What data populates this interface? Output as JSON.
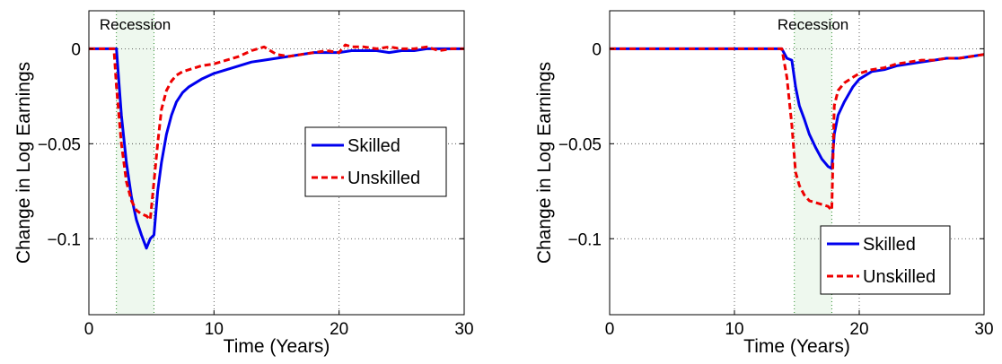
{
  "chart_data": [
    {
      "type": "line",
      "title": "",
      "xlabel": "Time (Years)",
      "ylabel": "Change in Log Earnings",
      "xlim": [
        0,
        30
      ],
      "ylim": [
        -0.14,
        0.02
      ],
      "xticks": [
        0,
        10,
        20,
        30
      ],
      "yticks": [
        0,
        -0.05,
        -0.1
      ],
      "xtick_labels": [
        "0",
        "10",
        "20",
        "30"
      ],
      "ytick_labels": [
        "0",
        "−0.05",
        "−0.1"
      ],
      "grid": true,
      "legend_position": "right",
      "annotation": "Recession",
      "shaded_region": [
        2.2,
        5.2
      ],
      "series": [
        {
          "name": "Skilled",
          "color": "#0000ee",
          "style": "solid",
          "x": [
            0,
            1,
            2,
            2.2,
            2.6,
            3.0,
            3.4,
            3.8,
            4.2,
            4.6,
            4.9,
            5.2,
            5.5,
            5.8,
            6.2,
            6.6,
            7.0,
            7.5,
            8,
            9,
            10,
            11,
            12,
            13,
            14,
            15,
            16,
            17,
            18,
            19,
            20,
            21,
            22,
            23,
            24,
            25,
            26,
            27,
            28,
            29,
            30
          ],
          "y": [
            0,
            0,
            0,
            0,
            -0.035,
            -0.06,
            -0.078,
            -0.09,
            -0.098,
            -0.105,
            -0.1,
            -0.098,
            -0.075,
            -0.06,
            -0.045,
            -0.035,
            -0.028,
            -0.023,
            -0.02,
            -0.016,
            -0.013,
            -0.011,
            -0.009,
            -0.007,
            -0.006,
            -0.005,
            -0.004,
            -0.003,
            -0.002,
            -0.002,
            -0.002,
            -0.001,
            -0.001,
            -0.001,
            -0.002,
            -0.001,
            -0.001,
            0,
            0,
            0,
            0
          ]
        },
        {
          "name": "Unskilled",
          "color": "#ee0000",
          "style": "dashed",
          "x": [
            0,
            1,
            2,
            2.2,
            2.6,
            3.0,
            3.4,
            3.8,
            4.2,
            4.6,
            4.9,
            5.2,
            5.5,
            5.8,
            6.2,
            6.6,
            7.0,
            7.5,
            8,
            9,
            10,
            11,
            12,
            13,
            14,
            15,
            16,
            17,
            18,
            19,
            20,
            20.5,
            21,
            22,
            23,
            24,
            25,
            26,
            27,
            28,
            29,
            30
          ],
          "y": [
            0,
            0,
            0,
            -0.02,
            -0.05,
            -0.07,
            -0.08,
            -0.085,
            -0.087,
            -0.088,
            -0.09,
            -0.07,
            -0.05,
            -0.032,
            -0.022,
            -0.017,
            -0.014,
            -0.012,
            -0.011,
            -0.009,
            -0.008,
            -0.006,
            -0.004,
            -0.001,
            0.001,
            -0.003,
            -0.004,
            -0.003,
            -0.002,
            -0.001,
            -0.002,
            0.002,
            0.001,
            0.001,
            0,
            0.001,
            0,
            0,
            0.001,
            -0.001,
            0,
            0
          ]
        }
      ]
    },
    {
      "type": "line",
      "title": "",
      "xlabel": "Time (Years)",
      "ylabel": "Change in Log Earnings",
      "xlim": [
        0,
        30
      ],
      "ylim": [
        -0.14,
        0.02
      ],
      "xticks": [
        0,
        10,
        20,
        30
      ],
      "yticks": [
        0,
        -0.05,
        -0.1
      ],
      "xtick_labels": [
        "0",
        "10",
        "20",
        "30"
      ],
      "ytick_labels": [
        "0",
        "−0.05",
        "−0.1"
      ],
      "grid": true,
      "legend_position": "bottom-right",
      "annotation": "Recession",
      "shaded_region": [
        14.8,
        17.8
      ],
      "series": [
        {
          "name": "Skilled",
          "color": "#0000ee",
          "style": "solid",
          "x": [
            0,
            13.8,
            14.2,
            14.6,
            14.9,
            15.2,
            15.6,
            16.0,
            16.5,
            17.0,
            17.5,
            17.8,
            18.0,
            18.3,
            18.8,
            19.5,
            20,
            21,
            22,
            23,
            24,
            25,
            26,
            27,
            28,
            29,
            30
          ],
          "y": [
            0,
            0,
            -0.005,
            -0.006,
            -0.02,
            -0.03,
            -0.037,
            -0.045,
            -0.052,
            -0.058,
            -0.062,
            -0.063,
            -0.045,
            -0.035,
            -0.028,
            -0.02,
            -0.016,
            -0.012,
            -0.011,
            -0.009,
            -0.008,
            -0.007,
            -0.006,
            -0.005,
            -0.005,
            -0.004,
            -0.003
          ]
        },
        {
          "name": "Unskilled",
          "color": "#ee0000",
          "style": "dashed",
          "x": [
            0,
            13.8,
            14.2,
            14.6,
            14.9,
            15.2,
            15.6,
            16.0,
            16.5,
            17.0,
            17.5,
            17.8,
            18.0,
            18.3,
            18.8,
            19.5,
            20,
            21,
            22,
            23,
            24,
            25,
            26,
            27,
            28,
            29,
            30
          ],
          "y": [
            0,
            0,
            -0.015,
            -0.04,
            -0.065,
            -0.072,
            -0.077,
            -0.08,
            -0.081,
            -0.082,
            -0.083,
            -0.085,
            -0.03,
            -0.022,
            -0.018,
            -0.015,
            -0.013,
            -0.011,
            -0.01,
            -0.008,
            -0.007,
            -0.006,
            -0.006,
            -0.005,
            -0.005,
            -0.004,
            -0.003
          ]
        }
      ]
    }
  ]
}
